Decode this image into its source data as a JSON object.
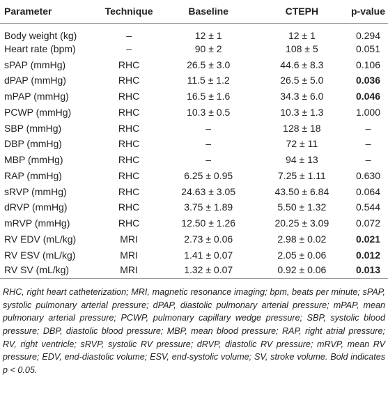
{
  "table": {
    "header": [
      "Parameter",
      "Technique",
      "Baseline",
      "CTEPH",
      "p-value"
    ],
    "rows": [
      {
        "cells": [
          "Body weight (kg)",
          "–",
          "12 ± 1",
          "12 ± 1",
          "0.294"
        ],
        "p_bold": false
      },
      {
        "cells": [
          "Heart rate (bpm)",
          "–",
          "90 ± 2",
          "108 ± 5",
          "0.051"
        ],
        "p_bold": false
      },
      {
        "cells": [
          "sPAP (mmHg)",
          "RHC",
          "26.5 ± 3.0",
          "44.6 ± 8.3",
          "0.106"
        ],
        "p_bold": false
      },
      {
        "cells": [
          "dPAP (mmHg)",
          "RHC",
          "11.5 ± 1.2",
          "26.5 ± 5.0",
          "0.036"
        ],
        "p_bold": true
      },
      {
        "cells": [
          "mPAP (mmHg)",
          "RHC",
          "16.5 ± 1.6",
          "34.3 ± 6.0",
          "0.046"
        ],
        "p_bold": true
      },
      {
        "cells": [
          "PCWP (mmHg)",
          "RHC",
          "10.3 ± 0.5",
          "10.3 ± 1.3",
          "1.000"
        ],
        "p_bold": false
      },
      {
        "cells": [
          "SBP (mmHg)",
          "RHC",
          "–",
          "128 ± 18",
          "–"
        ],
        "p_bold": false
      },
      {
        "cells": [
          "DBP (mmHg)",
          "RHC",
          "–",
          "72 ± 11",
          "–"
        ],
        "p_bold": false
      },
      {
        "cells": [
          "MBP (mmHg)",
          "RHC",
          "–",
          "94 ± 13",
          "–"
        ],
        "p_bold": false
      },
      {
        "cells": [
          "RAP (mmHg)",
          "RHC",
          "6.25 ± 0.95",
          "7.25 ± 1.11",
          "0.630"
        ],
        "p_bold": false
      },
      {
        "cells": [
          "sRVP (mmHg)",
          "RHC",
          "24.63 ± 3.05",
          "43.50 ± 6.84",
          "0.064"
        ],
        "p_bold": false
      },
      {
        "cells": [
          "dRVP (mmHg)",
          "RHC",
          "3.75 ± 1.89",
          "5.50 ± 1.32",
          "0.544"
        ],
        "p_bold": false
      },
      {
        "cells": [
          "mRVP (mmHg)",
          "RHC",
          "12.50 ± 1.26",
          "20.25 ± 3.09",
          "0.072"
        ],
        "p_bold": false
      },
      {
        "cells": [
          "RV EDV (mL/kg)",
          "MRI",
          "2.73 ± 0.06",
          "2.98 ± 0.02",
          "0.021"
        ],
        "p_bold": true
      },
      {
        "cells": [
          "RV ESV (mL/kg)",
          "MRI",
          "1.41 ± 0.07",
          "2.05 ± 0.06",
          "0.012"
        ],
        "p_bold": true
      },
      {
        "cells": [
          "RV SV (mL/kg)",
          "MRI",
          "1.32 ± 0.07",
          "0.92 ± 0.06",
          "0.013"
        ],
        "p_bold": true
      }
    ]
  },
  "footnote": "RHC, right heart catheterization; MRI, magnetic resonance imaging; bpm, beats per minute; sPAP, systolic pulmonary arterial pressure; dPAP, diastolic pulmonary arterial pressure; mPAP, mean pulmonary arterial pressure; PCWP, pulmonary capillary wedge pressure; SBP, systolic blood pressure; DBP, diastolic blood pressure; MBP, mean blood pressure; RAP, right atrial pressure; RV, right ventricle; sRVP, systolic RV pressure; dRVP, diastolic RV pressure; mRVP, mean RV pressure; EDV, end-diastolic volume; ESV, end-systolic volume; SV, stroke volume. Bold indicates p < 0.05."
}
